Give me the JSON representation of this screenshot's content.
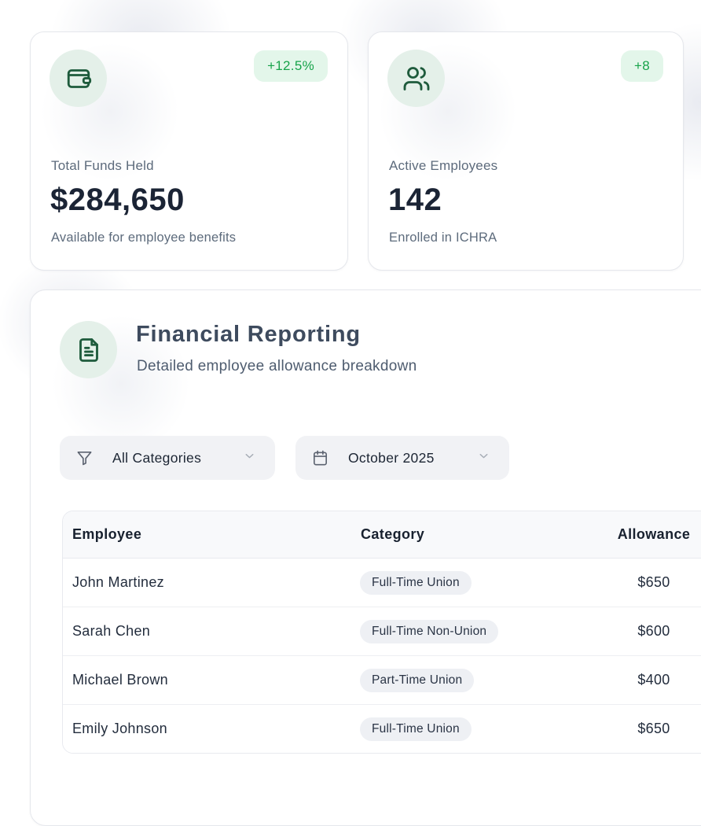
{
  "colors": {
    "icon_green": "#1E5B3C",
    "icon_bg": "#E4F0E9",
    "badge_text": "#17A34A",
    "badge_bg": "#E3F6EA",
    "value_dark": "#1B2435",
    "label_gray": "#5D6B7C",
    "title_slate": "#3E4B5E",
    "subtitle_slate": "#4E5C6F",
    "card_border": "#E5E7EC",
    "filter_bg": "#F1F2F5",
    "filter_text": "#1C2533",
    "chip_bg": "#EEF0F4",
    "chip_text": "#2A3445",
    "thead_bg": "#F8F9FB",
    "table_border": "#E8EAEF",
    "row_divider": "#EDEFF2",
    "row_text": "#232D3D",
    "blob": "#E9EBF1"
  },
  "stat_cards": [
    {
      "icon": "wallet-icon",
      "badge": "+12.5%",
      "label": "Total Funds Held",
      "value": "$284,650",
      "sublabel": "Available for employee benefits"
    },
    {
      "icon": "users-icon",
      "badge": "+8",
      "label": "Active Employees",
      "value": "142",
      "sublabel": "Enrolled in ICHRA"
    }
  ],
  "report": {
    "title": "Financial Reporting",
    "subtitle": "Detailed employee allowance breakdown",
    "icon": "document-icon",
    "filters": [
      {
        "icon": "funnel-icon",
        "value": "All Categories"
      },
      {
        "icon": "calendar-icon",
        "value": "October 2025"
      }
    ],
    "table": {
      "columns": [
        "Employee",
        "Category",
        "Allowance"
      ],
      "rows": [
        {
          "employee": "John Martinez",
          "category": "Full-Time Union",
          "allowance": "$650"
        },
        {
          "employee": "Sarah Chen",
          "category": "Full-Time Non-Union",
          "allowance": "$600"
        },
        {
          "employee": "Michael Brown",
          "category": "Part-Time Union",
          "allowance": "$400"
        },
        {
          "employee": "Emily Johnson",
          "category": "Full-Time Union",
          "allowance": "$650"
        }
      ]
    }
  }
}
